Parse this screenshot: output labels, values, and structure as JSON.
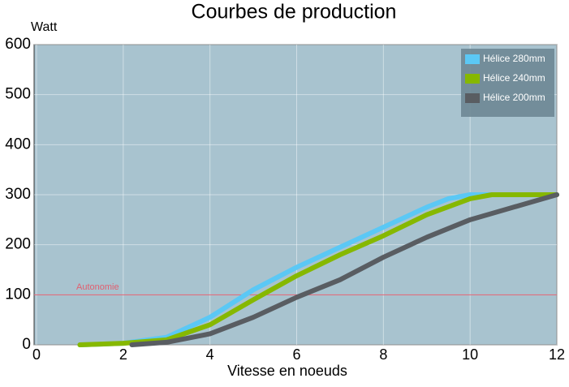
{
  "chart_data": {
    "type": "line",
    "title": "Courbes de production",
    "y_label": "Watt",
    "x_label": "Vitesse en noeuds",
    "xlim": [
      0,
      12
    ],
    "xticks": [
      0,
      2,
      4,
      6,
      8,
      10,
      12
    ],
    "ylim": [
      0,
      600
    ],
    "yticks": [
      0,
      100,
      200,
      300,
      400,
      500,
      600
    ],
    "grid": true,
    "legend": "top-right",
    "reference_line": {
      "label": "Autonomie",
      "value": 100,
      "color": "#e06070"
    },
    "series": [
      {
        "name": "Hélice 280mm",
        "color": "#5bc8f5",
        "x": [
          1,
          2,
          3,
          4,
          5,
          6,
          7,
          8,
          9,
          9.5,
          10,
          12
        ],
        "values": [
          0,
          3,
          15,
          55,
          110,
          155,
          195,
          235,
          275,
          292,
          300,
          300
        ]
      },
      {
        "name": "Hélice 240mm",
        "color": "#86b800",
        "x": [
          1,
          2,
          3,
          4,
          5,
          6,
          7,
          8,
          9,
          10,
          10.5,
          12
        ],
        "values": [
          0,
          3,
          10,
          40,
          90,
          138,
          180,
          218,
          260,
          292,
          300,
          300
        ]
      },
      {
        "name": "Hélice 200mm",
        "color": "#595d62",
        "x": [
          2.2,
          3,
          4,
          5,
          6,
          7,
          8,
          9,
          10,
          11,
          12
        ],
        "values": [
          0,
          5,
          22,
          55,
          95,
          130,
          175,
          215,
          250,
          275,
          300
        ]
      }
    ]
  }
}
